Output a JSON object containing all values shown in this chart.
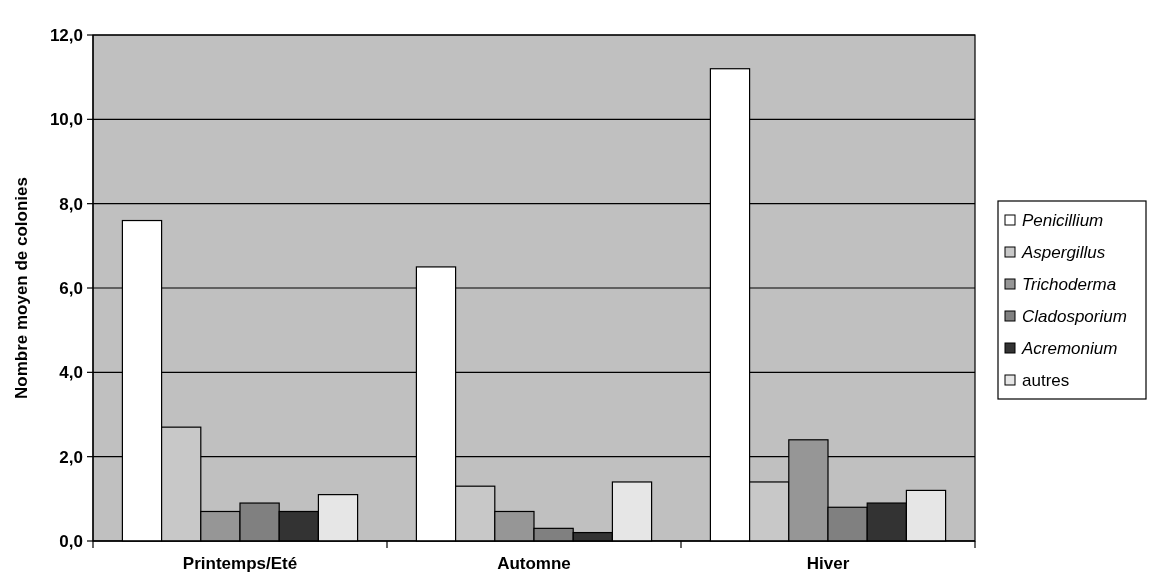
{
  "chart_data": {
    "type": "bar",
    "ylabel": "Nombre moyen de colonies",
    "categories": [
      "Printemps/Eté",
      "Automne",
      "Hiver"
    ],
    "series": [
      {
        "name": "Penicillium",
        "color": "#ffffff",
        "values": [
          7.6,
          6.5,
          11.2
        ]
      },
      {
        "name": "Aspergillus",
        "color": "#c8c8c8",
        "values": [
          2.7,
          1.3,
          1.4
        ]
      },
      {
        "name": "Trichoderma",
        "color": "#969696",
        "values": [
          0.7,
          0.7,
          2.4
        ]
      },
      {
        "name": "Cladosporium",
        "color": "#808080",
        "values": [
          0.9,
          0.3,
          0.8
        ]
      },
      {
        "name": "Acremonium",
        "color": "#333333",
        "values": [
          0.7,
          0.2,
          0.9
        ]
      },
      {
        "name": "autres",
        "color": "#e6e6e6",
        "values": [
          1.1,
          1.4,
          1.2
        ]
      }
    ],
    "ylim": [
      0,
      12
    ],
    "yticks": [
      {
        "value": 0,
        "label": "0,0"
      },
      {
        "value": 2,
        "label": "2,0"
      },
      {
        "value": 4,
        "label": "4,0"
      },
      {
        "value": 6,
        "label": "6,0"
      },
      {
        "value": 8,
        "label": "8,0"
      },
      {
        "value": 10,
        "label": "10,0"
      },
      {
        "value": 12,
        "label": "12,0"
      }
    ],
    "grid": "y",
    "legend": "right"
  }
}
